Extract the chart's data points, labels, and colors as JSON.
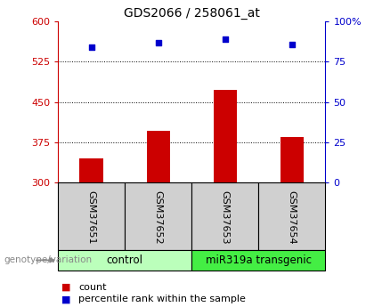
{
  "title": "GDS2066 / 258061_at",
  "samples": [
    "GSM37651",
    "GSM37652",
    "GSM37653",
    "GSM37654"
  ],
  "counts": [
    345,
    397,
    472,
    385
  ],
  "percentiles": [
    84,
    87,
    89,
    86
  ],
  "ylim_left": [
    300,
    600
  ],
  "ylim_right": [
    0,
    100
  ],
  "yticks_left": [
    300,
    375,
    450,
    525,
    600
  ],
  "yticks_right": [
    0,
    25,
    50,
    75,
    100
  ],
  "ytick_labels_right": [
    "0",
    "25",
    "50",
    "75",
    "100%"
  ],
  "hlines": [
    375,
    450,
    525
  ],
  "bar_color": "#cc0000",
  "dot_color": "#0000cc",
  "groups": [
    {
      "label": "control",
      "indices": [
        0,
        1
      ],
      "color": "#bbffbb"
    },
    {
      "label": "miR319a transgenic",
      "indices": [
        2,
        3
      ],
      "color": "#44ee44"
    }
  ],
  "genotype_label": "genotype/variation",
  "legend_bar_label": "count",
  "legend_dot_label": "percentile rank within the sample",
  "title_fontsize": 10,
  "tick_fontsize": 8,
  "sample_label_fontsize": 8,
  "group_label_fontsize": 8.5,
  "legend_fontsize": 8
}
